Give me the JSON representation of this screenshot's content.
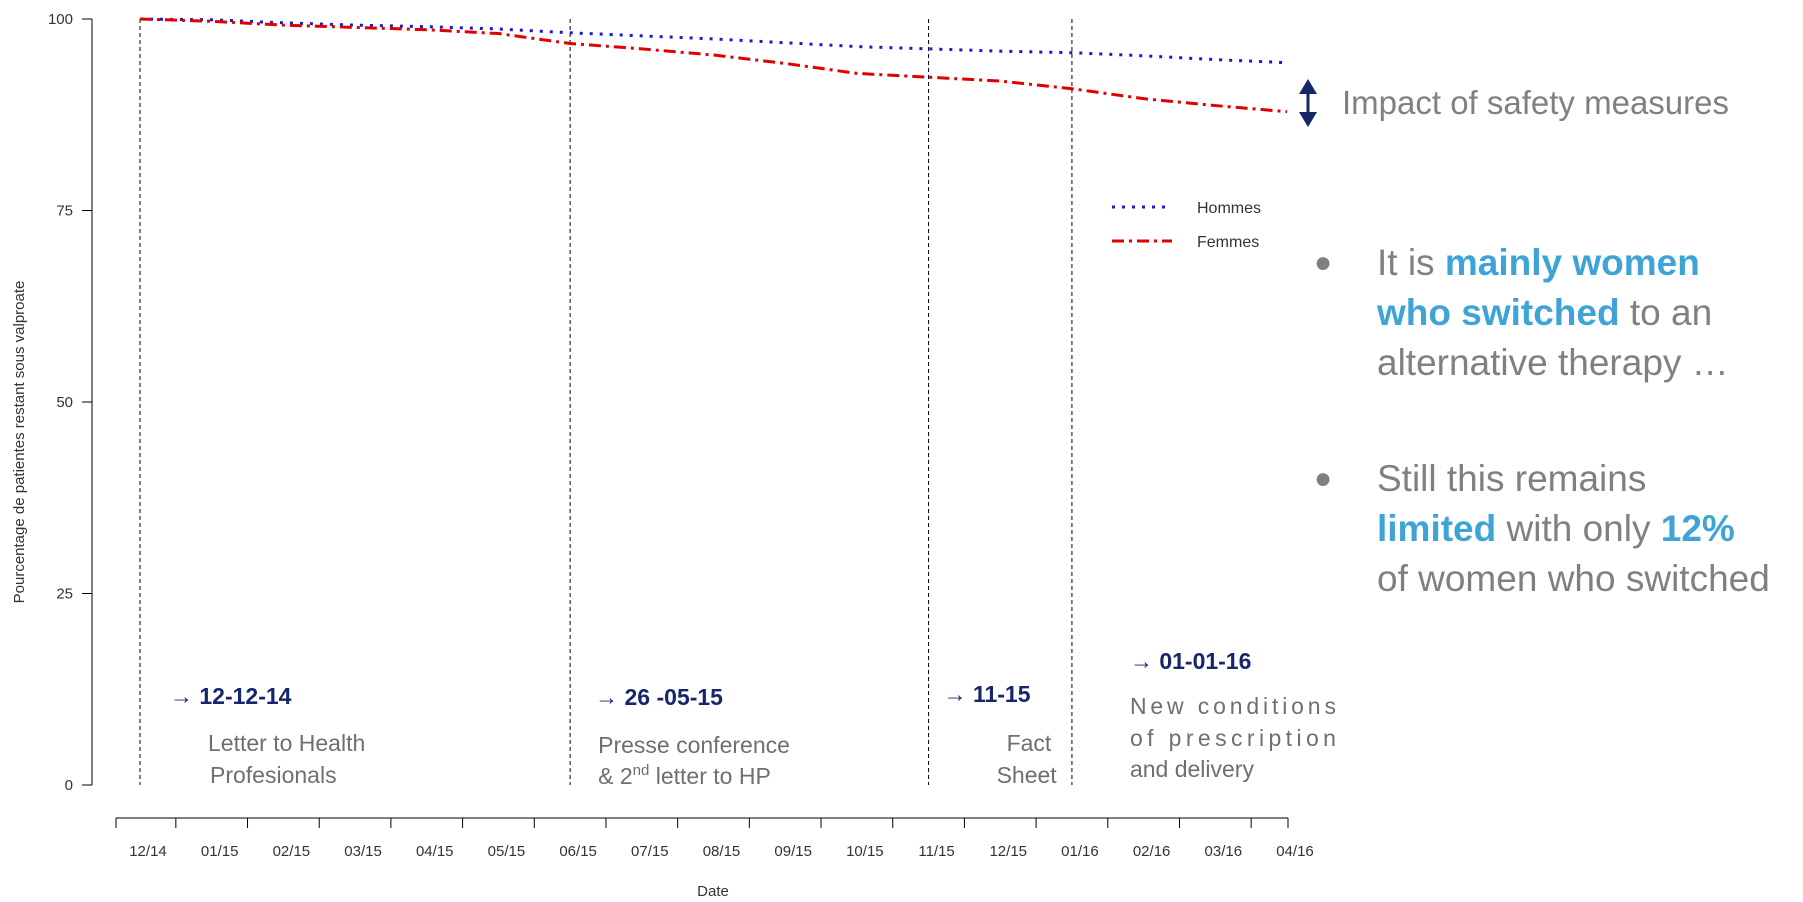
{
  "chart_data": {
    "type": "line",
    "title": "",
    "xlabel": "Date",
    "ylabel": "Pourcentage de patientes restant sous valproate",
    "ylim": [
      0,
      100
    ],
    "yticks": [
      "0",
      "25",
      "50",
      "75",
      "100"
    ],
    "x_ticks": [
      "12/14",
      "01/15",
      "02/15",
      "03/15",
      "04/15",
      "05/15",
      "06/15",
      "07/15",
      "08/15",
      "09/15",
      "10/15",
      "11/15",
      "12/15",
      "01/16",
      "02/16",
      "03/16",
      "04/16"
    ],
    "legend": {
      "position": "top-right"
    },
    "series": [
      {
        "name": "Hommes",
        "color": "#1a1acc",
        "style": "dotted",
        "values": [
          100,
          99.9,
          99.5,
          99.2,
          99.0,
          98.7,
          98.2,
          97.8,
          97.4,
          96.9,
          96.4,
          96.1,
          95.8,
          95.6,
          95.2,
          94.7,
          94.3
        ]
      },
      {
        "name": "Femmes",
        "color": "#e00000",
        "style": "dash-dot",
        "values": [
          100,
          99.7,
          99.2,
          98.9,
          98.6,
          98.1,
          96.8,
          96.1,
          95.3,
          94.2,
          92.9,
          92.4,
          91.9,
          90.9,
          89.6,
          88.7,
          87.9
        ]
      }
    ],
    "events": [
      {
        "tick_index": 0,
        "date": "12-12-14",
        "lines": [
          "Letter to Health",
          "Profesionals"
        ]
      },
      {
        "tick_index": 6,
        "date": "26 -05-15",
        "lines": [
          "Presse conference",
          "& 2nd letter to HP"
        ]
      },
      {
        "tick_index": 11,
        "date": "11-15",
        "lines": [
          "Fact",
          "Sheet"
        ]
      },
      {
        "tick_index": 13,
        "date": "01-01-16",
        "lines": [
          "New conditions",
          "of prescription",
          "and delivery"
        ]
      }
    ]
  },
  "side_panel": {
    "impact_label": "Impact of safety measures",
    "bullet1": {
      "pre": "It is ",
      "highlight": "mainly women who switched",
      "post": " to an alternative therapy …"
    },
    "bullet2": {
      "pre": "Still this remains ",
      "highlight1": "limited",
      "mid": " with only ",
      "highlight2": "12%",
      "post": " of women who switched"
    }
  }
}
